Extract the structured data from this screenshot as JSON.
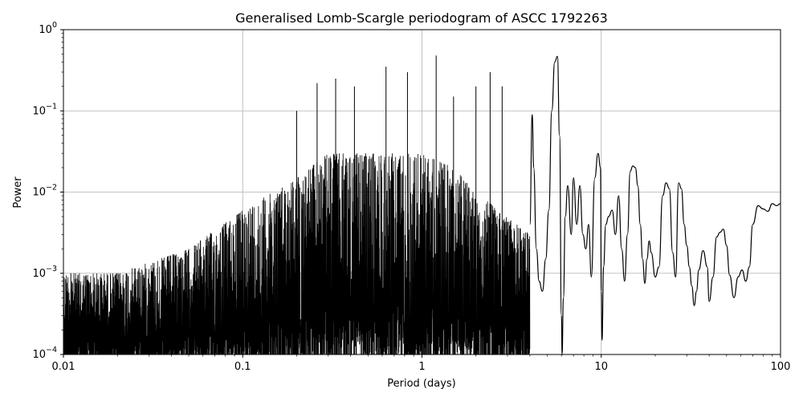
{
  "chart_data": {
    "type": "line",
    "title": "Generalised Lomb-Scargle periodogram of ASCC 1792263",
    "xlabel": "Period (days)",
    "ylabel": "Power",
    "xscale": "log",
    "yscale": "log",
    "xlim": [
      0.01,
      100
    ],
    "ylim": [
      0.0001,
      1
    ],
    "grid": true,
    "line_color": "#000000",
    "x_ticks": [
      {
        "value": 0.01,
        "label": "0.01"
      },
      {
        "value": 0.1,
        "label": "0.1"
      },
      {
        "value": 1,
        "label": "1"
      },
      {
        "value": 10,
        "label": "10"
      },
      {
        "value": 100,
        "label": "100"
      }
    ],
    "y_ticks": [
      {
        "value": 0.0001,
        "base": "10",
        "exp": "−4"
      },
      {
        "value": 0.001,
        "base": "10",
        "exp": "−3"
      },
      {
        "value": 0.01,
        "base": "10",
        "exp": "−2"
      },
      {
        "value": 0.1,
        "base": "10",
        "exp": "−1"
      },
      {
        "value": 1,
        "base": "10",
        "exp": "0"
      }
    ],
    "dense_region": {
      "x_range": [
        0.01,
        4.0
      ],
      "envelope_x": [
        0.01,
        0.02,
        0.05,
        0.1,
        0.2,
        0.3,
        0.5,
        1.0,
        1.5,
        2.0,
        3.0,
        4.0
      ],
      "envelope_max": [
        0.001,
        0.001,
        0.002,
        0.006,
        0.015,
        0.03,
        0.03,
        0.03,
        0.02,
        0.01,
        0.005,
        0.003
      ],
      "peaks": [
        {
          "x": 0.011,
          "y": 0.001
        },
        {
          "x": 0.2,
          "y": 0.1
        },
        {
          "x": 0.26,
          "y": 0.22
        },
        {
          "x": 0.33,
          "y": 0.25
        },
        {
          "x": 0.42,
          "y": 0.2
        },
        {
          "x": 0.63,
          "y": 0.35
        },
        {
          "x": 0.83,
          "y": 0.3
        },
        {
          "x": 1.2,
          "y": 0.48
        },
        {
          "x": 1.5,
          "y": 0.15
        },
        {
          "x": 2.0,
          "y": 0.2
        },
        {
          "x": 2.4,
          "y": 0.3
        },
        {
          "x": 2.8,
          "y": 0.2
        }
      ]
    },
    "series": [
      {
        "x": [
          4.0,
          4.12,
          4.2,
          4.35,
          4.5,
          4.7,
          4.9,
          5.1,
          5.3,
          5.5,
          5.7,
          5.85,
          6.0,
          6.05,
          6.15,
          6.3,
          6.5,
          6.8,
          7.0,
          7.3,
          7.6,
          7.9,
          8.2,
          8.5,
          8.8,
          9.2,
          9.6,
          9.9,
          10.0,
          10.1,
          10.3,
          10.6,
          11.0,
          11.5,
          12.0,
          12.5,
          13.0,
          13.5,
          14.0,
          14.5,
          15.0,
          15.5,
          16.0,
          16.5,
          17.0,
          17.5,
          18.0,
          18.5,
          19.0,
          20.0,
          21.0,
          22.0,
          23.0,
          24.0,
          25.0,
          26.0,
          27.0,
          28.0,
          29.0,
          30.0,
          31.0,
          32.0,
          33.0,
          34.0,
          35.0,
          37.0,
          39.0,
          40.0,
          42.0,
          44.0,
          46.0,
          48.0,
          50.0,
          52.0,
          55.0,
          58.0,
          61.0,
          64.0,
          67.0,
          70.0,
          75.0,
          80.0,
          85.0,
          90.0,
          95.0,
          100.0
        ],
        "values": [
          0.004,
          0.09,
          0.02,
          0.002,
          0.0008,
          0.0006,
          0.0015,
          0.006,
          0.1,
          0.4,
          0.47,
          0.05,
          0.0003,
          0.0001,
          0.0005,
          0.005,
          0.012,
          0.003,
          0.015,
          0.004,
          0.012,
          0.003,
          0.002,
          0.004,
          0.0009,
          0.015,
          0.03,
          0.02,
          0.0006,
          0.00015,
          0.0012,
          0.004,
          0.005,
          0.006,
          0.003,
          0.009,
          0.002,
          0.0008,
          0.003,
          0.018,
          0.021,
          0.02,
          0.012,
          0.004,
          0.0015,
          0.00075,
          0.0015,
          0.0025,
          0.0018,
          0.0009,
          0.0012,
          0.009,
          0.013,
          0.011,
          0.0018,
          0.0009,
          0.013,
          0.011,
          0.004,
          0.0022,
          0.0012,
          0.0007,
          0.0004,
          0.0006,
          0.0011,
          0.0019,
          0.0012,
          0.00045,
          0.0009,
          0.0028,
          0.0032,
          0.0035,
          0.0022,
          0.00095,
          0.0005,
          0.0009,
          0.0011,
          0.0008,
          0.0012,
          0.004,
          0.0068,
          0.0062,
          0.0058,
          0.0072,
          0.0068,
          0.0072
        ]
      }
    ]
  }
}
